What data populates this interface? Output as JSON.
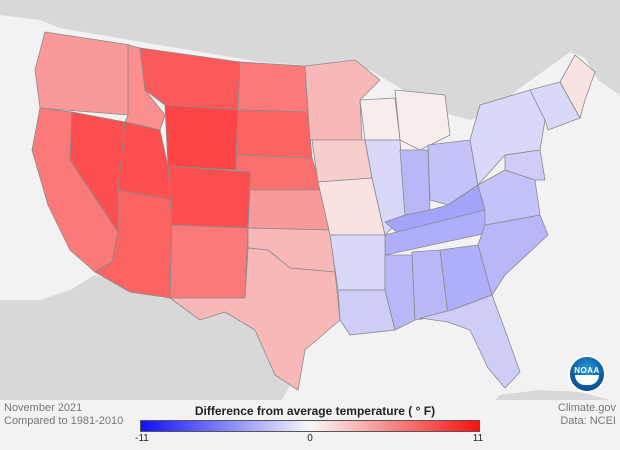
{
  "map": {
    "legend_title": "Difference from average temperature ( ° F)",
    "legend_min": "-11",
    "legend_mid": "0",
    "legend_max": "11",
    "colors": {
      "cold": "#1010ff",
      "neutral": "#f7f7f7",
      "warm": "#ff1010",
      "land_outside": "#d6d6d6",
      "water": "#f2f2f2",
      "border": "#8a8a8a"
    },
    "regions": [
      {
        "name": "Pacific Northwest",
        "anomaly": 4.5
      },
      {
        "name": "California",
        "anomaly": 6
      },
      {
        "name": "Nevada",
        "anomaly": 8
      },
      {
        "name": "Arizona",
        "anomaly": 7
      },
      {
        "name": "Idaho",
        "anomaly": 5
      },
      {
        "name": "Montana",
        "anomaly": 7.5
      },
      {
        "name": "Wyoming",
        "anomaly": 8.5
      },
      {
        "name": "Utah",
        "anomaly": 8
      },
      {
        "name": "Colorado",
        "anomaly": 8
      },
      {
        "name": "New Mexico",
        "anomaly": 6
      },
      {
        "name": "North Dakota",
        "anomaly": 6
      },
      {
        "name": "South Dakota",
        "anomaly": 7
      },
      {
        "name": "Nebraska",
        "anomaly": 6.5
      },
      {
        "name": "Kansas",
        "anomaly": 4.5
      },
      {
        "name": "Oklahoma",
        "anomaly": 3
      },
      {
        "name": "Texas",
        "anomaly": 3
      },
      {
        "name": "Minnesota",
        "anomaly": 3
      },
      {
        "name": "Iowa",
        "anomaly": 2
      },
      {
        "name": "Missouri",
        "anomaly": 1
      },
      {
        "name": "Wisconsin",
        "anomaly": 0.5
      },
      {
        "name": "Michigan",
        "anomaly": 0.5
      },
      {
        "name": "Illinois",
        "anomaly": -1.5
      },
      {
        "name": "Indiana",
        "anomaly": -3
      },
      {
        "name": "Ohio",
        "anomaly": -2.5
      },
      {
        "name": "Kentucky",
        "anomaly": -4
      },
      {
        "name": "Tennessee",
        "anomaly": -3.5
      },
      {
        "name": "Arkansas",
        "anomaly": -1.5
      },
      {
        "name": "Louisiana",
        "anomaly": -2
      },
      {
        "name": "Mississippi",
        "anomaly": -3
      },
      {
        "name": "Alabama",
        "anomaly": -3
      },
      {
        "name": "Georgia",
        "anomaly": -3.5
      },
      {
        "name": "Florida",
        "anomaly": -2
      },
      {
        "name": "Carolinas",
        "anomaly": -3
      },
      {
        "name": "Virginia",
        "anomaly": -2.5
      },
      {
        "name": "Mid-Atlantic",
        "anomaly": -2
      },
      {
        "name": "Pennsylvania / New York",
        "anomaly": -1.5
      },
      {
        "name": "New England",
        "anomaly": -1.5
      },
      {
        "name": "Maine",
        "anomaly": 1
      }
    ]
  },
  "footer": {
    "date": "November 2021",
    "baseline": "Compared to 1981-2010",
    "site": "Climate.gov",
    "source": "Data: NCEI",
    "logo": "NOAA"
  }
}
